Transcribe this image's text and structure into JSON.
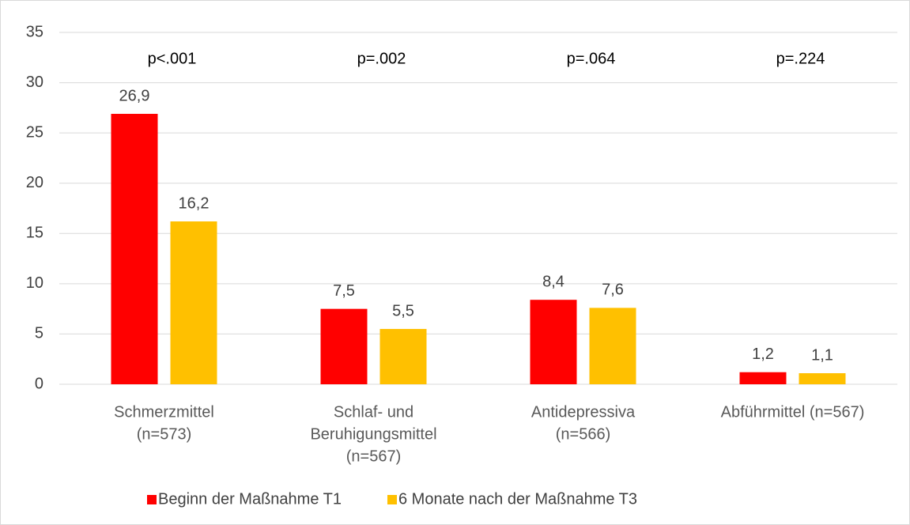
{
  "chart_data": {
    "type": "bar",
    "categories": [
      [
        "Schmerzmittel",
        "(n=573)"
      ],
      [
        "Schlaf- und",
        "Beruhigungsmittel",
        "(n=567)"
      ],
      [
        "Antidepressiva",
        "(n=566)"
      ],
      [
        "Abführmittel (n=567)"
      ]
    ],
    "annotations": [
      "p<.001",
      "p=.002",
      "p=.064",
      "p=.224"
    ],
    "series": [
      {
        "name": "Beginn der Maßnahme T1",
        "color": "#ff0000",
        "values": [
          26.9,
          7.5,
          8.4,
          1.2
        ],
        "value_labels": [
          "26,9",
          "7,5",
          "8,4",
          "1,2"
        ]
      },
      {
        "name": "6 Monate nach der Maßnahme T3",
        "color": "#ffc000",
        "values": [
          16.2,
          5.5,
          7.6,
          1.1
        ],
        "value_labels": [
          "16,2",
          "5,5",
          "7,6",
          "1,1"
        ]
      }
    ],
    "ylim": [
      0,
      35
    ],
    "yticks": [
      0,
      5,
      10,
      15,
      20,
      25,
      30,
      35
    ],
    "grid": true,
    "legend": "bottom"
  }
}
